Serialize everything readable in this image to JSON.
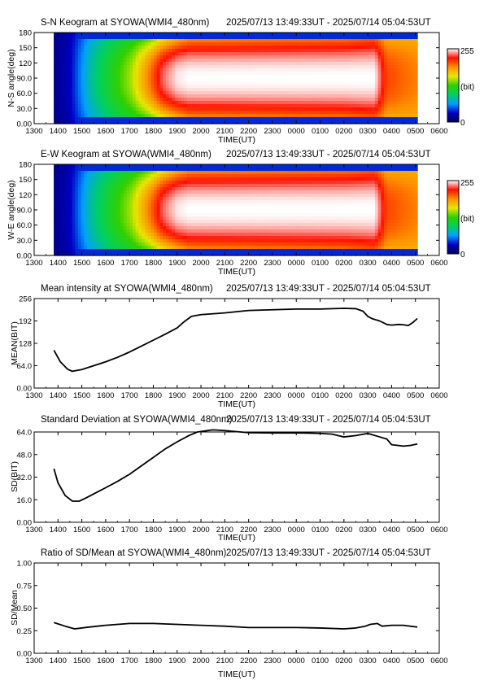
{
  "panels": [
    {
      "title": "S-N Keogram at SYOWA(WMI4_480nm)",
      "range": "2025/07/13 13:49:33UT - 2025/07/14 05:04:53UT",
      "ylabel": "N-S angle(deg)",
      "xlabel": "TIME(UT)",
      "colorbar": {
        "max": "255",
        "mid": "(bit)",
        "min": "0"
      }
    },
    {
      "title": "E-W Keogram at SYOWA(WMI4_480nm)",
      "range": "2025/07/13 13:49:33UT - 2025/07/14 05:04:53UT",
      "ylabel": "W-E angle(deg)",
      "xlabel": "TIME(UT)",
      "colorbar": {
        "max": "255",
        "mid": "(bit)",
        "min": "0"
      }
    },
    {
      "title": "Mean intensity at SYOWA(WMI4_480nm)",
      "range": "2025/07/13 13:49:33UT - 2025/07/14 05:04:53UT",
      "ylabel": "MEAN(BIT)",
      "xlabel": "TIME(UT)"
    },
    {
      "title": "Standard Deviation at SYOWA(WMI4_480nm)",
      "range": "2025/07/13 13:49:33UT - 2025/07/14 05:04:53UT",
      "ylabel": "SD(BIT)",
      "xlabel": "TIME(UT)"
    },
    {
      "title": "Ratio of SD/Mean at SYOWA(WMI4_480nm)",
      "range": "2025/07/13 13:49:33UT - 2025/07/14 05:04:53UT",
      "ylabel": "SD/Mean",
      "xlabel": "TIME(UT)"
    }
  ],
  "x_ticks": [
    "1300",
    "1400",
    "1500",
    "1600",
    "1700",
    "1800",
    "1900",
    "2000",
    "2100",
    "2200",
    "2300",
    "0000",
    "0100",
    "0200",
    "0300",
    "0400",
    "0500",
    "0600"
  ],
  "chart_data": [
    {
      "type": "heatmap",
      "title": "S-N Keogram at SYOWA(WMI4_480nm)",
      "xlabel": "TIME(UT)",
      "ylabel": "N-S angle(deg)",
      "xlim": [
        "1300",
        "0600"
      ],
      "ylim": [
        0,
        180
      ],
      "y_ticks": [
        "0.00",
        "30.0",
        "60.0",
        "90.0",
        "120",
        "150",
        "180"
      ],
      "data_start": "13:49:33",
      "data_end": "05:04:53",
      "colorscale": {
        "min": 0,
        "max": 255,
        "unit": "(bit)",
        "colors": [
          "#000050",
          "#0000c8",
          "#00a0ff",
          "#00d060",
          "#30d000",
          "#e8e800",
          "#ff9000",
          "#ff1000",
          "#ffffff"
        ]
      },
      "intensity_profile": {
        "hours": [
          13.83,
          14.5,
          15.3,
          16.2,
          17.1,
          17.8,
          18.4,
          19.0,
          19.5,
          26.0,
          27.3,
          27.8,
          29.08
        ],
        "center": [
          15,
          30,
          80,
          115,
          150,
          195,
          235,
          252,
          255,
          255,
          255,
          210,
          195
        ],
        "edge": [
          15,
          25,
          60,
          85,
          100,
          110,
          130,
          150,
          165,
          175,
          185,
          170,
          175
        ]
      }
    },
    {
      "type": "heatmap",
      "title": "E-W Keogram at SYOWA(WMI4_480nm)",
      "xlabel": "TIME(UT)",
      "ylabel": "W-E angle(deg)",
      "xlim": [
        "1300",
        "0600"
      ],
      "ylim": [
        0,
        180
      ],
      "y_ticks": [
        "0.00",
        "30.0",
        "60.0",
        "90.0",
        "120",
        "150",
        "180"
      ],
      "data_start": "13:49:33",
      "data_end": "05:04:53",
      "colorscale": {
        "min": 0,
        "max": 255,
        "unit": "(bit)",
        "colors": [
          "#000050",
          "#0000c8",
          "#00a0ff",
          "#00d060",
          "#30d000",
          "#e8e800",
          "#ff9000",
          "#ff1000",
          "#ffffff"
        ]
      },
      "intensity_profile": {
        "hours": [
          13.83,
          14.5,
          15.3,
          16.2,
          17.1,
          17.8,
          18.4,
          19.0,
          19.5,
          26.0,
          27.3,
          27.8,
          29.08
        ],
        "center": [
          15,
          30,
          80,
          115,
          150,
          195,
          235,
          252,
          255,
          255,
          255,
          210,
          195
        ],
        "edge": [
          15,
          25,
          60,
          85,
          100,
          110,
          130,
          150,
          165,
          175,
          185,
          170,
          175
        ]
      }
    },
    {
      "type": "line",
      "title": "Mean intensity at SYOWA(WMI4_480nm)",
      "xlabel": "TIME(UT)",
      "ylabel": "MEAN(BIT)",
      "xlim": [
        "1300",
        "0600"
      ],
      "ylim": [
        0,
        256
      ],
      "y_ticks": [
        "0.00",
        "64.0",
        "128",
        "192",
        "256"
      ],
      "x_hours": [
        13.83,
        14.1,
        14.4,
        14.6,
        15.0,
        15.5,
        16.0,
        16.5,
        17.0,
        17.5,
        18.0,
        18.5,
        19.0,
        19.3,
        19.6,
        20.0,
        21.0,
        22.0,
        23.0,
        24.0,
        25.0,
        26.0,
        26.5,
        26.8,
        27.0,
        27.2,
        27.5,
        27.8,
        28.0,
        28.3,
        28.5,
        28.7,
        28.9,
        29.08
      ],
      "series": [
        {
          "values": [
            108,
            75,
            54,
            48,
            53,
            64,
            75,
            88,
            103,
            120,
            137,
            154,
            172,
            190,
            205,
            210,
            215,
            222,
            224,
            226,
            226,
            228,
            227,
            220,
            205,
            198,
            192,
            182,
            180,
            182,
            181,
            179,
            188,
            199
          ]
        }
      ]
    },
    {
      "type": "line",
      "title": "Standard Deviation at SYOWA(WMI4_480nm)",
      "xlabel": "TIME(UT)",
      "ylabel": "SD(BIT)",
      "xlim": [
        "1300",
        "0600"
      ],
      "ylim": [
        0,
        64
      ],
      "y_ticks": [
        "0.00",
        "16.0",
        "32.0",
        "48.0",
        "64.0"
      ],
      "x_hours": [
        13.83,
        14.0,
        14.3,
        14.6,
        14.9,
        15.2,
        15.6,
        16.0,
        16.5,
        17.0,
        17.5,
        18.0,
        18.5,
        19.0,
        19.5,
        19.85,
        20.5,
        21.0,
        22.0,
        23.0,
        24.0,
        25.0,
        25.5,
        26.0,
        26.5,
        27.0,
        27.5,
        27.8,
        28.0,
        28.5,
        28.8,
        29.08
      ],
      "series": [
        {
          "values": [
            38,
            28,
            19,
            15,
            15,
            17.5,
            21,
            24.5,
            29,
            34,
            40,
            46,
            52,
            57,
            61.5,
            64,
            65.5,
            65,
            63.5,
            63.3,
            63.4,
            63,
            62.5,
            60.5,
            61.5,
            63,
            60.5,
            59,
            55,
            54,
            54.5,
            55.5
          ]
        }
      ]
    },
    {
      "type": "line",
      "title": "Ratio of SD/Mean at SYOWA(WMI4_480nm)",
      "xlabel": "TIME(UT)",
      "ylabel": "SD/Mean",
      "xlim": [
        "1300",
        "0600"
      ],
      "ylim": [
        0,
        1
      ],
      "y_ticks": [
        "0.00",
        "0.25",
        "0.50",
        "0.75",
        "1.00"
      ],
      "x_hours": [
        13.83,
        14.3,
        14.7,
        15.3,
        16.0,
        17.0,
        18.0,
        19.0,
        20.0,
        21.0,
        22.0,
        23.0,
        24.0,
        25.0,
        26.0,
        26.5,
        26.9,
        27.1,
        27.4,
        27.6,
        28.0,
        28.5,
        29.08
      ],
      "series": [
        {
          "values": [
            0.34,
            0.3,
            0.27,
            0.29,
            0.31,
            0.33,
            0.33,
            0.32,
            0.31,
            0.3,
            0.285,
            0.285,
            0.285,
            0.28,
            0.27,
            0.28,
            0.3,
            0.32,
            0.33,
            0.3,
            0.31,
            0.31,
            0.29
          ]
        }
      ]
    }
  ]
}
